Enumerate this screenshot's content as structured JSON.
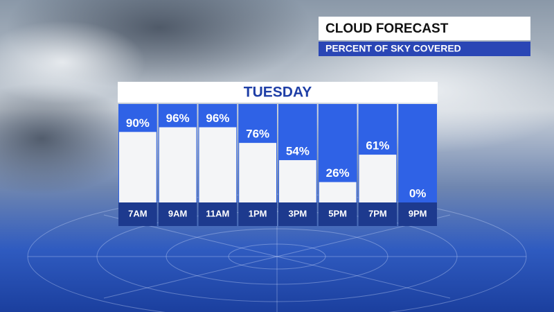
{
  "chart_data": {
    "type": "bar",
    "title": "CLOUD FORECAST",
    "subtitle": "PERCENT OF SKY COVERED",
    "header": "TUESDAY",
    "categories": [
      "7AM",
      "9AM",
      "11AM",
      "1PM",
      "3PM",
      "5PM",
      "7PM",
      "9PM"
    ],
    "values": [
      90,
      96,
      96,
      76,
      54,
      26,
      61,
      0
    ],
    "value_labels": [
      "90%",
      "96%",
      "96%",
      "76%",
      "54%",
      "26%",
      "61%",
      "0%"
    ],
    "color": "#f4f5f7"
  }
}
